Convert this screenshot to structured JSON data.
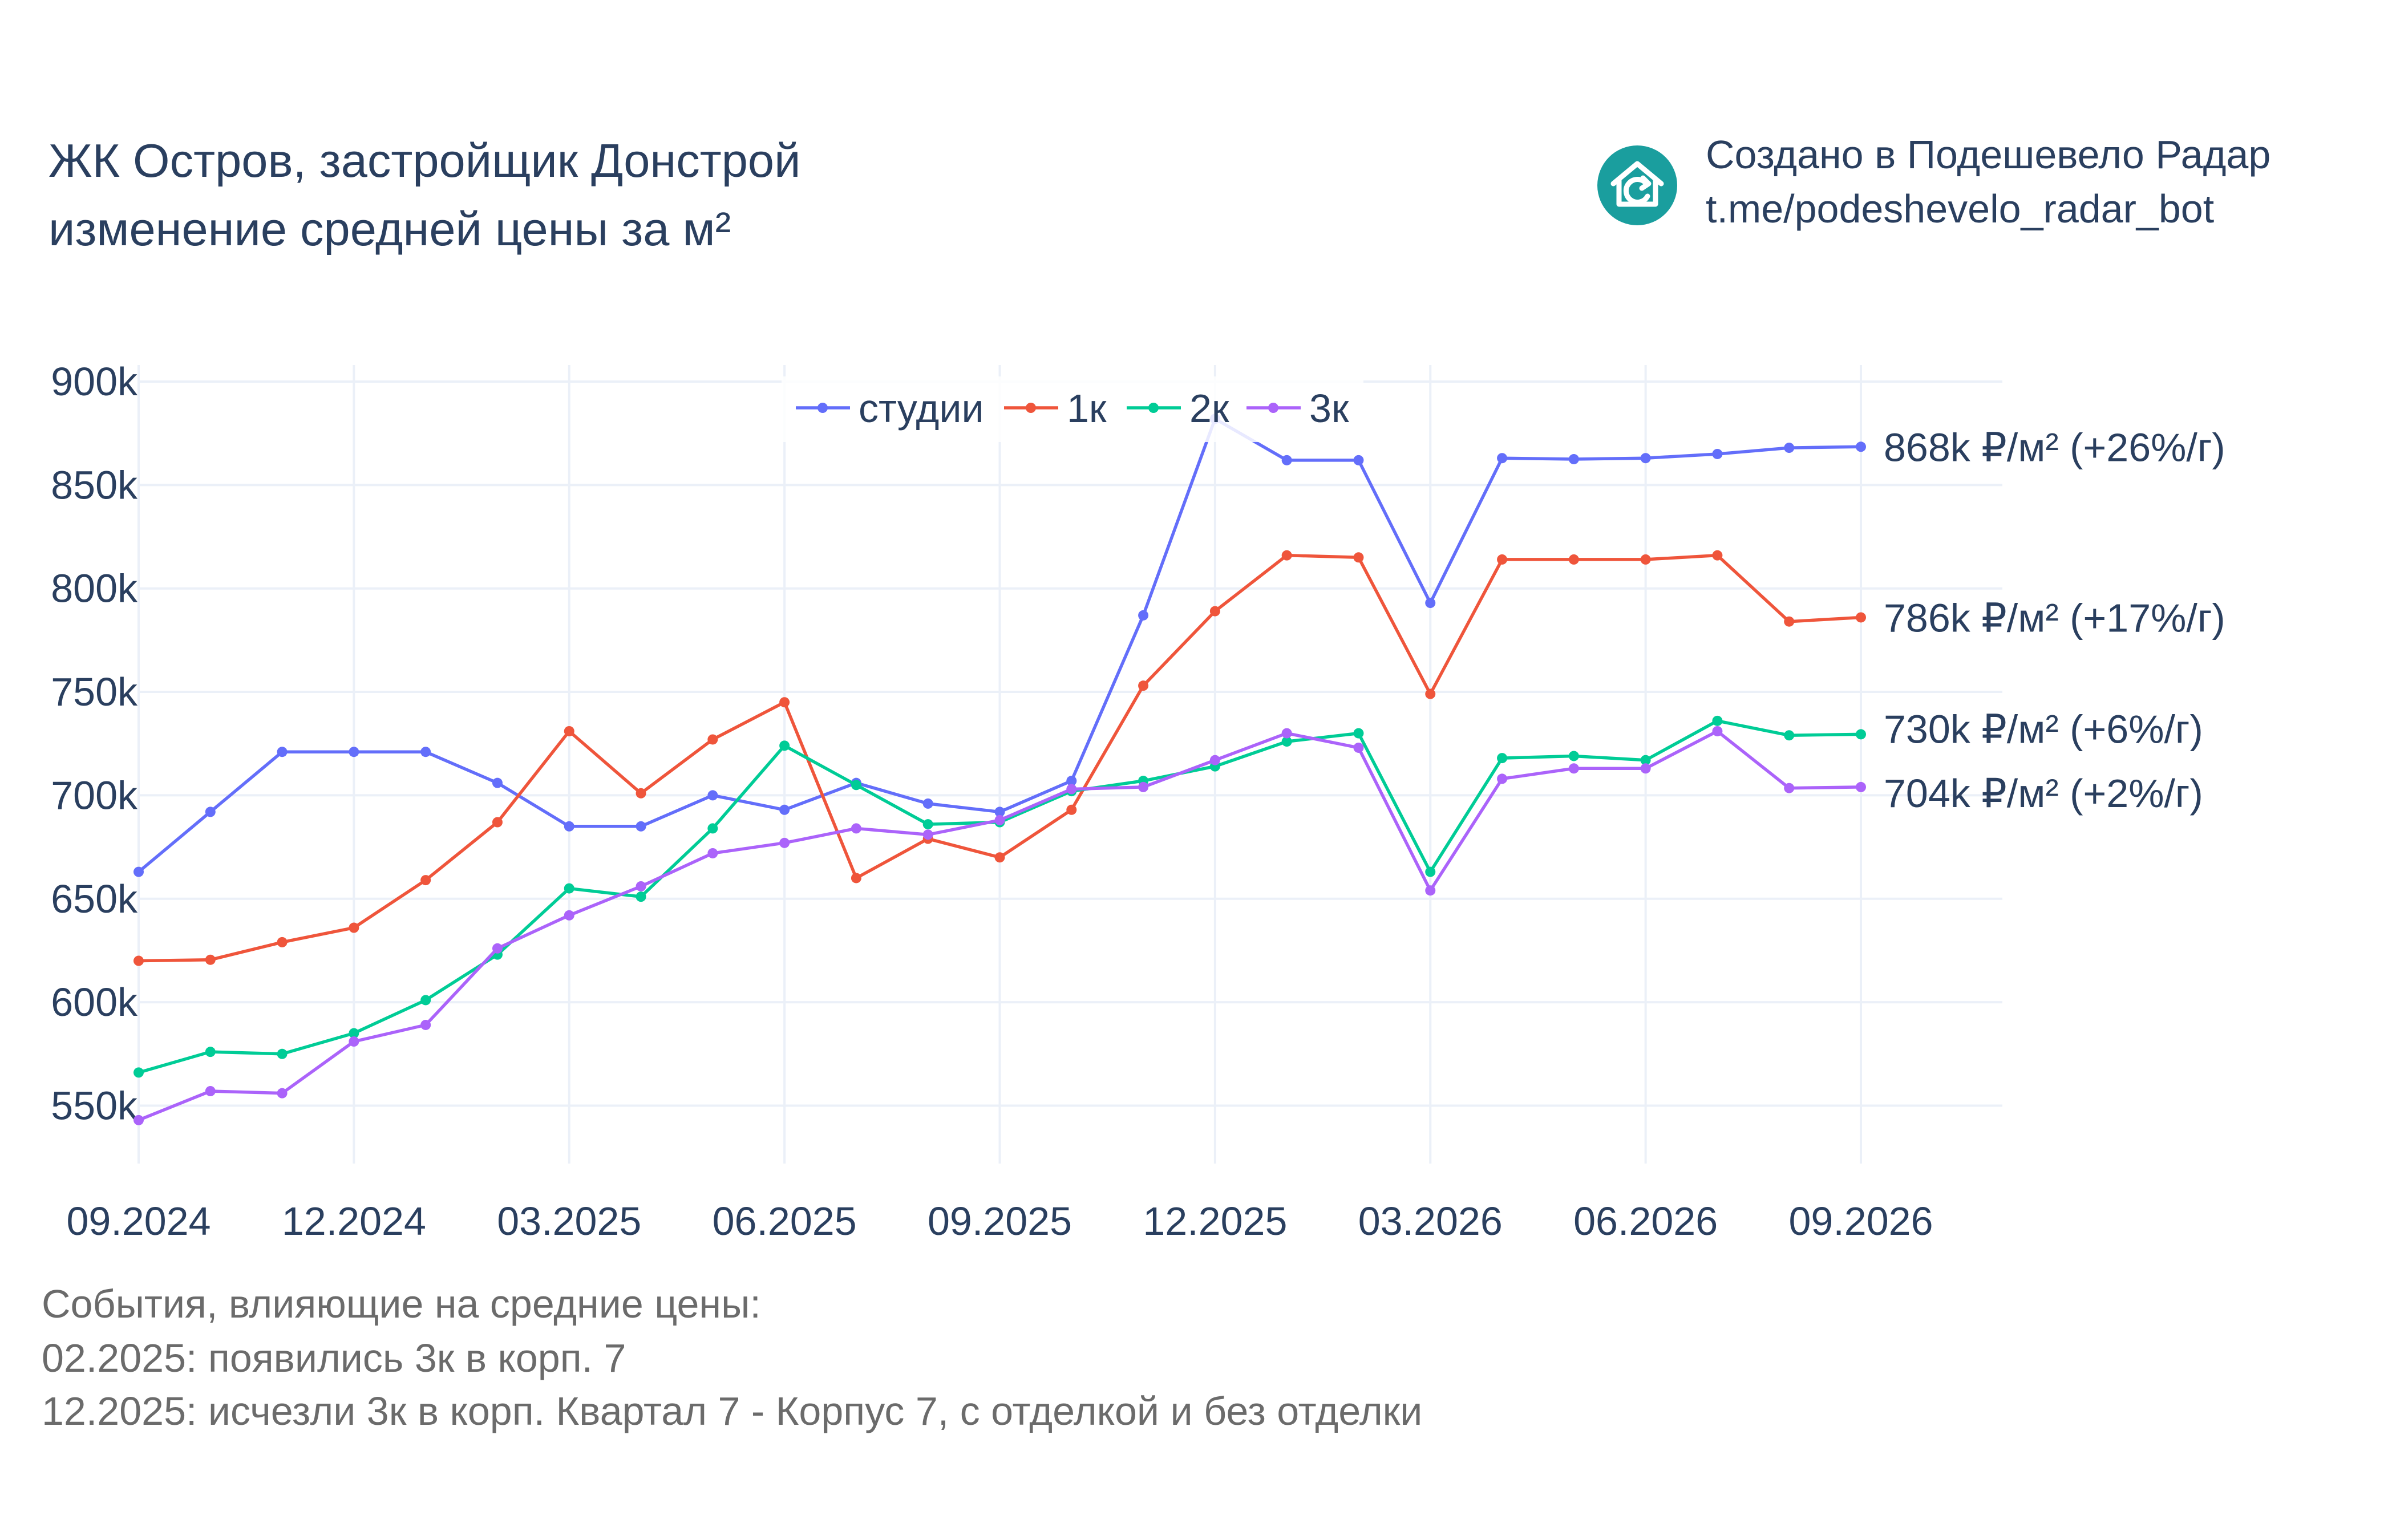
{
  "title": {
    "line1": "ЖК Остров, застройщик Донстрой",
    "line2": "изменение средней цены за м²"
  },
  "brand": {
    "line1": "Создано в Подешевело Радар",
    "line2": "t.me/podeshevelo_radar_bot",
    "logo_icon": "house-refresh-icon",
    "logo_color": "#1a9e9e"
  },
  "notes": {
    "heading": "События, влияющие на средние цены:",
    "items": [
      "02.2025: появились 3к в корп. 7",
      "12.2025: исчезли 3к в корп. Квартал 7 - Корпус 7, с отделкой и без отделки"
    ]
  },
  "chart_data": {
    "type": "line",
    "x": [
      "09.2024",
      "10.2024",
      "11.2024",
      "12.2024",
      "01.2025",
      "02.2025",
      "03.2025",
      "04.2025",
      "05.2025",
      "06.2025",
      "07.2025",
      "08.2025",
      "09.2025",
      "10.2025",
      "11.2025",
      "12.2025",
      "01.2026",
      "02.2026",
      "03.2026",
      "04.2026",
      "05.2026",
      "06.2026",
      "07.2026",
      "08.2026",
      "09.2026"
    ],
    "x_ticks": [
      "09.2024",
      "12.2024",
      "03.2025",
      "06.2025",
      "09.2025",
      "12.2025",
      "03.2026",
      "06.2026",
      "09.2026"
    ],
    "y_ticks": [
      550000,
      600000,
      650000,
      700000,
      750000,
      800000,
      850000,
      900000
    ],
    "y_tick_labels": [
      "550k",
      "600k",
      "650k",
      "700k",
      "750k",
      "800k",
      "850k",
      "900k"
    ],
    "ylim": [
      522000,
      908000
    ],
    "grid": true,
    "legend_placement": "top-center",
    "series": [
      {
        "name": "студии",
        "color": "#636efa",
        "values": [
          663000,
          692000,
          721000,
          721000,
          721000,
          706000,
          685000,
          685000,
          700000,
          693000,
          706000,
          696000,
          692000,
          707000,
          787000,
          882000,
          862000,
          862000,
          793000,
          863000,
          862500,
          863000,
          865000,
          868000,
          868500
        ],
        "end_label": "868k ₽/м² (+26%/г)"
      },
      {
        "name": "1к",
        "color": "#ef553b",
        "values": [
          620000,
          620500,
          629000,
          636000,
          659000,
          687000,
          731000,
          701000,
          727000,
          745000,
          660000,
          679000,
          670000,
          693000,
          753000,
          789000,
          816000,
          815000,
          749000,
          814000,
          814000,
          814000,
          816000,
          784000,
          786000
        ],
        "end_label": "786k ₽/м² (+17%/г)"
      },
      {
        "name": "2к",
        "color": "#00cc96",
        "values": [
          566000,
          576000,
          575000,
          585000,
          601000,
          623000,
          655000,
          651000,
          684000,
          724000,
          705000,
          686000,
          687000,
          702000,
          707000,
          714000,
          726000,
          730000,
          663000,
          718000,
          719000,
          717000,
          736000,
          729000,
          729500
        ],
        "end_label": "730k ₽/м² (+6%/г)"
      },
      {
        "name": "3к",
        "color": "#ab63fa",
        "values": [
          543000,
          557000,
          556000,
          581000,
          589000,
          626000,
          642000,
          656000,
          672000,
          677000,
          684000,
          681000,
          688000,
          703000,
          704000,
          717000,
          730000,
          723000,
          654000,
          708000,
          713000,
          713000,
          731000,
          703500,
          704000
        ],
        "end_label": "704k ₽/м² (+2%/г)"
      }
    ]
  }
}
